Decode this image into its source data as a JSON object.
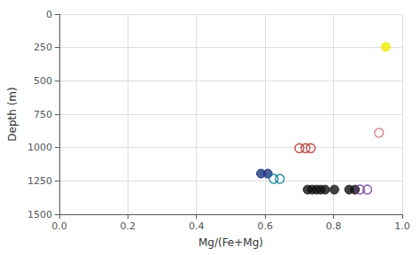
{
  "chart_data": {
    "type": "scatter",
    "xlabel": "Mg/(Fe+Mg)",
    "ylabel": "Depth (m)",
    "xlim": [
      0.0,
      1.0
    ],
    "ylim": [
      1500,
      0
    ],
    "xticks": [
      {
        "value": 0,
        "label": "0.0"
      },
      0.2,
      0.4,
      0.6,
      0.8,
      {
        "value": 1,
        "label": "1.0"
      }
    ],
    "yticks": [
      0,
      250,
      500,
      750,
      1000,
      1250,
      1500
    ],
    "grid": true,
    "series": [
      {
        "color": "#f0e800",
        "marker": "circle",
        "x": [
          0.952
        ],
        "values": [
          245
        ]
      },
      {
        "color": "#d07070",
        "marker": "open_circle",
        "x": [
          0.932
        ],
        "values": [
          890
        ]
      },
      {
        "color": "#b03030",
        "marker": "open_circle",
        "x": [
          0.7,
          0.718,
          0.733
        ],
        "values": [
          1005,
          1005,
          1005
        ]
      },
      {
        "color": "#1c3580",
        "marker": "circle",
        "x": [
          0.588,
          0.608
        ],
        "values": [
          1195,
          1195
        ]
      },
      {
        "color": "#007890",
        "marker": "open_circle",
        "x": [
          0.625,
          0.643
        ],
        "values": [
          1235,
          1235
        ]
      },
      {
        "color": "#111111",
        "marker": "circle",
        "x": [
          0.724,
          0.737,
          0.75,
          0.762,
          0.775,
          0.802,
          0.845,
          0.862
        ],
        "values": [
          1315,
          1315,
          1315,
          1315,
          1315,
          1315,
          1315,
          1315
        ]
      },
      {
        "color": "#7030a0",
        "marker": "open_circle",
        "x": [
          0.877,
          0.898
        ],
        "values": [
          1315,
          1315
        ]
      }
    ]
  }
}
